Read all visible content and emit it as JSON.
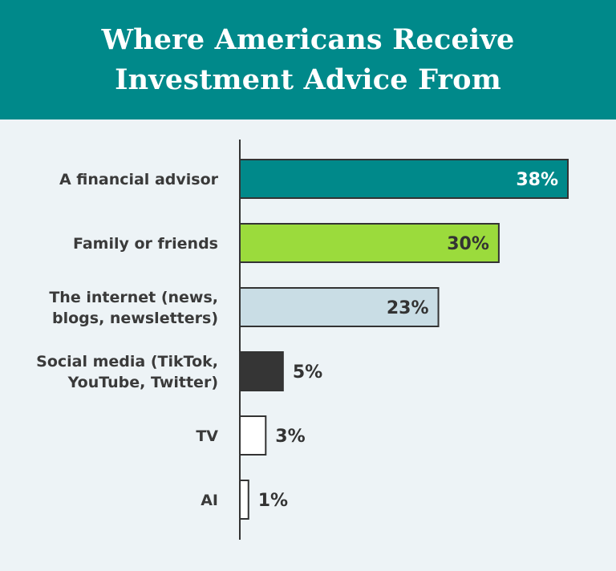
{
  "header": {
    "title": "Where Americans Receive\nInvestment Advice From"
  },
  "colors": {
    "header_bg": "#00898a",
    "page_bg": "#edf3f6",
    "text_dark": "#3a3a3a",
    "bar_outline": "#333333"
  },
  "chart_data": {
    "type": "bar",
    "orientation": "horizontal",
    "title": "Where Americans Receive Investment Advice From",
    "categories": [
      "A financial advisor",
      "Family or friends",
      "The internet (news, blogs, newsletters)",
      "Social media (TikTok, YouTube, Twitter)",
      "TV",
      "AI"
    ],
    "category_label_lines": [
      [
        "A financial advisor"
      ],
      [
        "Family or friends"
      ],
      [
        "The internet (news,",
        "blogs, newsletters)"
      ],
      [
        "Social media (TikTok,",
        "YouTube, Twitter)"
      ],
      [
        "TV"
      ],
      [
        "AI"
      ]
    ],
    "values": [
      38,
      30,
      23,
      5,
      3,
      1
    ],
    "value_labels": [
      "38%",
      "30%",
      "23%",
      "5%",
      "3%",
      "1%"
    ],
    "unit": "%",
    "bar_colors": [
      "#00898a",
      "#9bdb3c",
      "#c9dde5",
      "#353535",
      "#ffffff",
      "#ffffff"
    ],
    "value_label_inside": [
      true,
      true,
      true,
      false,
      false,
      false
    ],
    "value_label_colors": [
      "#ffffff",
      "#333333",
      "#333333",
      "#333333",
      "#333333",
      "#333333"
    ],
    "xlim": [
      0,
      38
    ],
    "grid": false,
    "legend": "none"
  }
}
